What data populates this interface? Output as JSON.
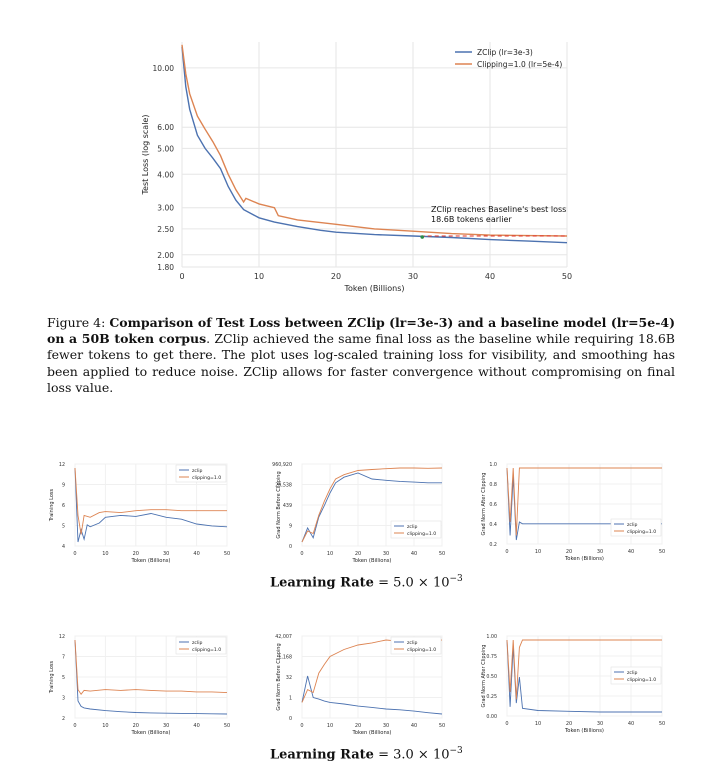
{
  "figure4": {
    "caption_label": "Figure 4:",
    "caption_bold": "Comparison of Test Loss between ZClip (lr=3e-3) and a baseline model (lr=5e-4) on a 50B token corpus",
    "caption_rest": ". ZClip achieved the same final loss as the baseline while requiring 18.6B fewer tokens to get there. The plot uses log-scaled training loss for visibility, and smoothing has been applied to reduce noise. ZClip allows for faster convergence without compromising on final loss value.",
    "annotation_line1": "ZClip reaches Baseline's best loss",
    "annotation_line2": "18.6B tokens earlier"
  },
  "lr_labels": {
    "prefix": "Learning Rate",
    "row1_value": " = 5.0 × 10",
    "row1_exp": "−3",
    "row2_value": " = 3.0 × 10",
    "row2_exp": "−3"
  },
  "colors": {
    "zclip": "#4c72b0",
    "clipping": "#dd8452",
    "grid": "#e6e6e6",
    "redline": "#e0322a"
  },
  "chart_data": [
    {
      "type": "line",
      "xlabel": "Token (Billions)",
      "ylabel": "Test Loss (log scale)",
      "xticks": [
        "0",
        "10",
        "20",
        "30",
        "40",
        "50"
      ],
      "yticks": [
        "1.80",
        "2.00",
        "2.50",
        "3.00",
        "4.00",
        "5.00",
        "6.00",
        "10.00"
      ],
      "ylim": [
        1.8,
        12.5
      ],
      "xlim": [
        0,
        50
      ],
      "yscale": "log",
      "legend_position": "top-right",
      "series": [
        {
          "name": "ZClip (lr=3e-3)",
          "x": [
            0,
            0.5,
            1,
            2,
            3,
            4,
            5,
            6,
            7,
            8,
            10,
            12,
            15,
            18,
            20,
            25,
            30,
            35,
            40,
            45,
            50
          ],
          "y": [
            12.0,
            8.5,
            7.0,
            5.6,
            5.0,
            4.6,
            4.2,
            3.6,
            3.2,
            2.95,
            2.75,
            2.65,
            2.55,
            2.47,
            2.43,
            2.38,
            2.35,
            2.32,
            2.28,
            2.25,
            2.22
          ]
        },
        {
          "name": "Clipping=1.0 (lr=5e-4)",
          "x": [
            0,
            0.5,
            1,
            2,
            3,
            4,
            5,
            6,
            7,
            8,
            8.3,
            10,
            12,
            12.5,
            15,
            20,
            25,
            30,
            35,
            40,
            45,
            50
          ],
          "y": [
            12.2,
            9.5,
            8.0,
            6.6,
            5.9,
            5.3,
            4.7,
            4.0,
            3.5,
            3.15,
            3.25,
            3.1,
            3.0,
            2.8,
            2.7,
            2.6,
            2.5,
            2.45,
            2.4,
            2.37,
            2.36,
            2.35
          ]
        }
      ]
    },
    {
      "type": "line",
      "xlabel": "Token (Billions)",
      "ylabel": "Training Loss",
      "xticks": [
        "0",
        "10",
        "20",
        "30",
        "40",
        "50"
      ],
      "yticks": [
        "12",
        "9",
        "6",
        "5",
        "4"
      ],
      "series": [
        {
          "name": "zclip",
          "x": [
            0,
            1,
            2,
            3,
            4,
            5,
            8,
            10,
            15,
            20,
            25,
            30,
            35,
            40,
            45,
            50
          ],
          "y": [
            12,
            4.2,
            5.5,
            4.5,
            6,
            5.8,
            6.2,
            6.8,
            7,
            6.9,
            7.2,
            6.8,
            6.6,
            6.1,
            5.9,
            5.8
          ]
        },
        {
          "name": "clipping=1.0",
          "x": [
            0,
            1,
            2,
            3,
            5,
            8,
            10,
            15,
            20,
            25,
            30,
            35,
            40,
            45,
            50
          ],
          "y": [
            12,
            7,
            5,
            7,
            6.8,
            7.3,
            7.4,
            7.3,
            7.5,
            7.6,
            7.6,
            7.5,
            7.5,
            7.5,
            7.5
          ]
        }
      ]
    },
    {
      "type": "line",
      "xlabel": "Token (Billions)",
      "ylabel": "Grad Norm Before Clipping",
      "xticks": [
        "0",
        "10",
        "20",
        "30",
        "40",
        "50"
      ],
      "yticks": [
        "960,920",
        "20,538",
        "439",
        "9",
        "0"
      ],
      "series": [
        {
          "name": "zclip",
          "x": [
            0,
            2,
            4,
            6,
            8,
            10,
            12,
            15,
            20,
            25,
            30,
            35,
            40,
            45,
            50
          ],
          "y": [
            0.5,
            5,
            1,
            30,
            200,
            1500,
            8000,
            20000,
            40000,
            15000,
            12000,
            10000,
            9000,
            8000,
            8000
          ]
        },
        {
          "name": "clipping=1.0",
          "x": [
            0,
            2,
            4,
            6,
            8,
            10,
            12,
            15,
            20,
            25,
            30,
            35,
            40,
            45,
            50
          ],
          "y": [
            0.5,
            3,
            2,
            40,
            400,
            3000,
            15000,
            30000,
            60000,
            70000,
            80000,
            90000,
            90000,
            85000,
            90000
          ]
        }
      ]
    },
    {
      "type": "line",
      "xlabel": "Token (Billions)",
      "ylabel": "Grad Norm After Clipping",
      "xticks": [
        "0",
        "10",
        "20",
        "30",
        "40",
        "50"
      ],
      "yticks": [
        "1.0",
        "0.8",
        "0.6",
        "0.4",
        "0.2"
      ],
      "series": [
        {
          "name": "zclip",
          "x": [
            0,
            1,
            2,
            3,
            4,
            5,
            50
          ],
          "y": [
            1.0,
            0.25,
            0.9,
            0.2,
            0.4,
            0.38,
            0.38
          ]
        },
        {
          "name": "clipping=1.0",
          "x": [
            0,
            1,
            2,
            3,
            4,
            5,
            50
          ],
          "y": [
            1.0,
            0.4,
            1.0,
            0.25,
            1.0,
            1.0,
            1.0
          ]
        }
      ]
    },
    {
      "type": "line",
      "xlabel": "Token (Billions)",
      "ylabel": "Training Loss",
      "xticks": [
        "0",
        "10",
        "20",
        "30",
        "40",
        "50"
      ],
      "yticks": [
        "12",
        "7",
        "5",
        "3",
        "2"
      ],
      "series": [
        {
          "name": "zclip",
          "x": [
            0,
            1,
            2,
            3,
            5,
            10,
            15,
            20,
            25,
            30,
            35,
            40,
            45,
            50
          ],
          "y": [
            12,
            4,
            3.3,
            3.1,
            2.95,
            2.75,
            2.6,
            2.5,
            2.45,
            2.4,
            2.38,
            2.35,
            2.32,
            2.3
          ]
        },
        {
          "name": "clipping=1.0",
          "x": [
            0,
            1,
            2,
            3,
            5,
            10,
            15,
            20,
            25,
            30,
            35,
            40,
            45,
            50
          ],
          "y": [
            12,
            5.5,
            4.9,
            5.4,
            5.3,
            5.5,
            5.4,
            5.5,
            5.4,
            5.3,
            5.3,
            5.2,
            5.2,
            5.1
          ]
        }
      ]
    },
    {
      "type": "line",
      "xlabel": "Token (Billions)",
      "ylabel": "Grad Norm Before Clipping",
      "xticks": [
        "0",
        "10",
        "20",
        "30",
        "40",
        "50"
      ],
      "yticks": [
        "42,007",
        "1,168",
        "32",
        "1",
        "0"
      ],
      "series": [
        {
          "name": "zclip",
          "x": [
            0,
            2,
            4,
            6,
            8,
            10,
            15,
            20,
            25,
            30,
            35,
            40,
            45,
            50
          ],
          "y": [
            0.5,
            20,
            1,
            0.8,
            0.6,
            0.5,
            0.4,
            0.3,
            0.25,
            0.2,
            0.18,
            0.15,
            0.12,
            0.1
          ]
        },
        {
          "name": "clipping=1.0",
          "x": [
            0,
            2,
            4,
            6,
            8,
            10,
            15,
            20,
            25,
            30,
            35,
            40,
            45,
            50
          ],
          "y": [
            0.5,
            3,
            2,
            30,
            100,
            300,
            800,
            1500,
            2000,
            3000,
            2500,
            3000,
            2500,
            3000
          ]
        }
      ]
    },
    {
      "type": "line",
      "xlabel": "Token (Billions)",
      "ylabel": "Grad Norm After Clipping",
      "xticks": [
        "0",
        "10",
        "20",
        "30",
        "40",
        "50"
      ],
      "yticks": [
        "1.00",
        "0.75",
        "0.50",
        "0.25",
        "0.00"
      ],
      "series": [
        {
          "name": "zclip",
          "x": [
            0,
            1,
            2,
            3,
            4,
            5,
            10,
            20,
            30,
            40,
            50
          ],
          "y": [
            1.0,
            0.1,
            0.9,
            0.15,
            0.5,
            0.08,
            0.05,
            0.04,
            0.03,
            0.03,
            0.03
          ]
        },
        {
          "name": "clipping=1.0",
          "x": [
            0,
            1,
            2,
            3,
            4,
            5,
            50
          ],
          "y": [
            1.0,
            0.3,
            1.0,
            0.2,
            0.9,
            1.0,
            1.0
          ]
        }
      ]
    }
  ]
}
